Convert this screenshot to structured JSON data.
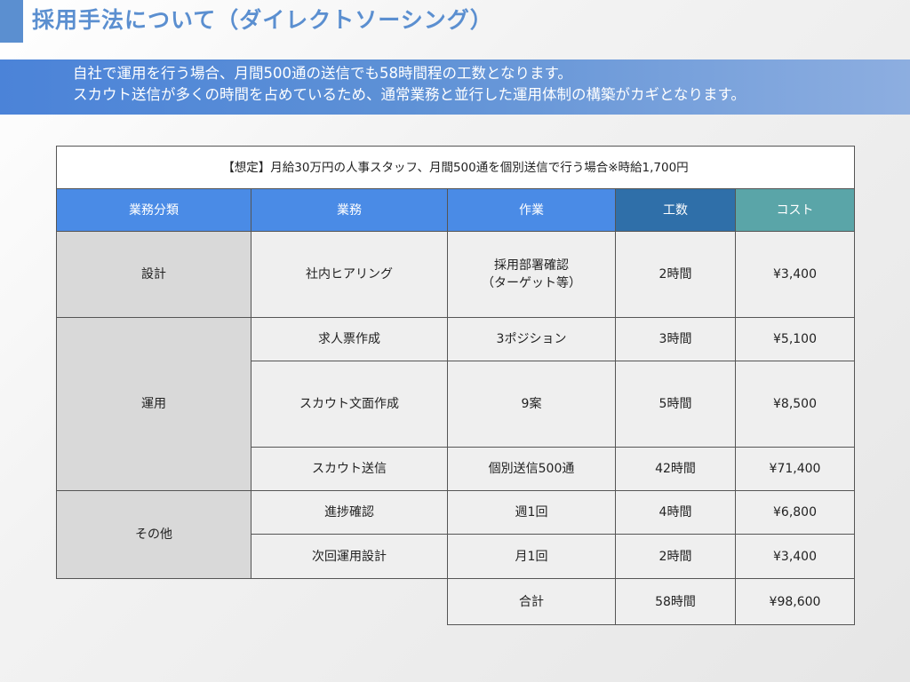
{
  "title": "採用手法について（ダイレクトソーシング）",
  "banner": {
    "line1": "自社で運用を行う場合、月間500通の送信でも58時間程の工数となります。",
    "line2": "スカウト送信が多くの時間を占めているため、通常業務と並行した運用体制の構築がカギとなります。"
  },
  "table": {
    "assumption": "【想定】月給30万円の人事スタッフ、月間500通を個別送信で行う場合※時給1,700円",
    "headers": {
      "category": "業務分類",
      "task": "業務",
      "work": "作業",
      "hours": "工数",
      "cost": "コスト"
    },
    "rows": [
      {
        "category": "設計",
        "task": "社内ヒアリング",
        "work_line1": "採用部署確認",
        "work_line2": "（ターゲット等）",
        "hours": "2時間",
        "cost": "¥3,400"
      },
      {
        "category": "運用",
        "task": "求人票作成",
        "work": "3ポジション",
        "hours": "3時間",
        "cost": "¥5,100"
      },
      {
        "task": "スカウト文面作成",
        "work": "9案",
        "hours": "5時間",
        "cost": "¥8,500"
      },
      {
        "task": "スカウト送信",
        "work": "個別送信500通",
        "hours": "42時間",
        "cost": "¥71,400"
      },
      {
        "category": "その他",
        "task": "進捗確認",
        "work": "週1回",
        "hours": "4時間",
        "cost": "¥6,800"
      },
      {
        "task": "次回運用設計",
        "work": "月1回",
        "hours": "2時間",
        "cost": "¥3,400"
      }
    ],
    "total": {
      "label": "合計",
      "hours": "58時間",
      "cost": "¥98,600"
    }
  }
}
